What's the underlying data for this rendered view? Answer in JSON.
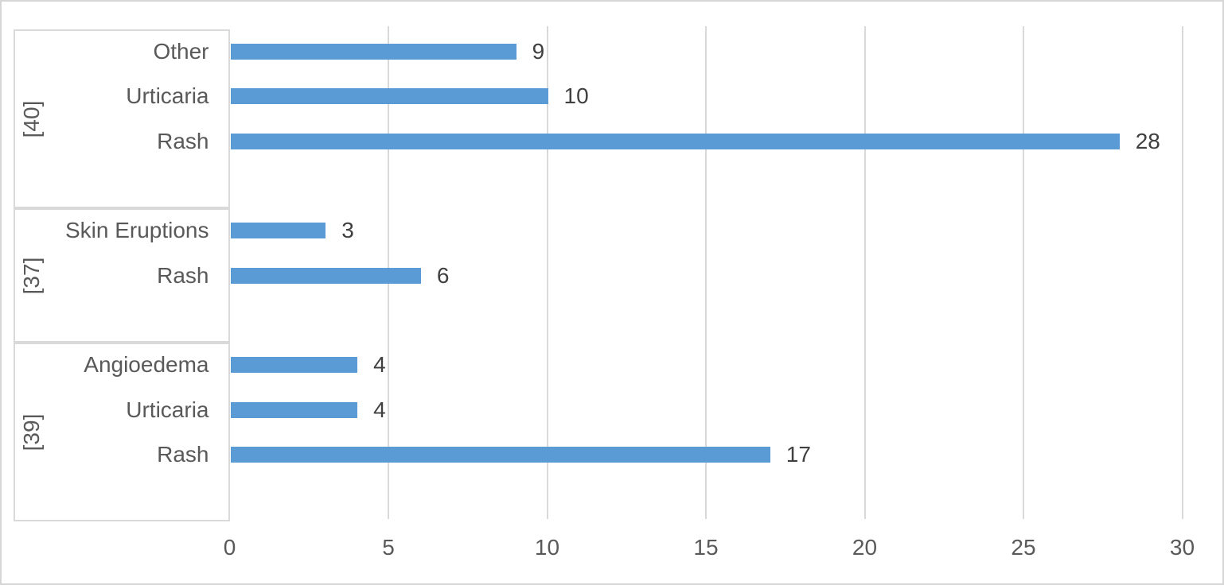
{
  "chart_data": {
    "type": "bar",
    "orientation": "horizontal",
    "title": "",
    "xlabel": "",
    "ylabel": "",
    "legend": "none",
    "grid": true,
    "data_labels": true,
    "xlim": [
      0,
      30
    ],
    "x_ticks": [
      "0",
      "5",
      "10",
      "15",
      "20",
      "25",
      "30"
    ],
    "groups": [
      {
        "label": "[40]",
        "items": [
          {
            "category": "Other",
            "value": 9
          },
          {
            "category": "Urticaria",
            "value": 10
          },
          {
            "category": "Rash",
            "value": 28
          }
        ]
      },
      {
        "label": "[37]",
        "items": [
          {
            "category": "Skin Eruptions",
            "value": 3
          },
          {
            "category": "Rash",
            "value": 6
          }
        ]
      },
      {
        "label": "[39]",
        "items": [
          {
            "category": "Angioedema",
            "value": 4
          },
          {
            "category": "Urticaria",
            "value": 4
          },
          {
            "category": "Rash",
            "value": 17
          }
        ]
      }
    ],
    "colors": {
      "bar": "#5B9BD5",
      "gridline": "#D9D9D9",
      "box_border": "#D9D9D9",
      "axis_text": "#595959",
      "category_text": "#595959",
      "data_label_text": "#404040",
      "frame_border": "#D6D6D6",
      "background": "#FFFFFF"
    }
  }
}
